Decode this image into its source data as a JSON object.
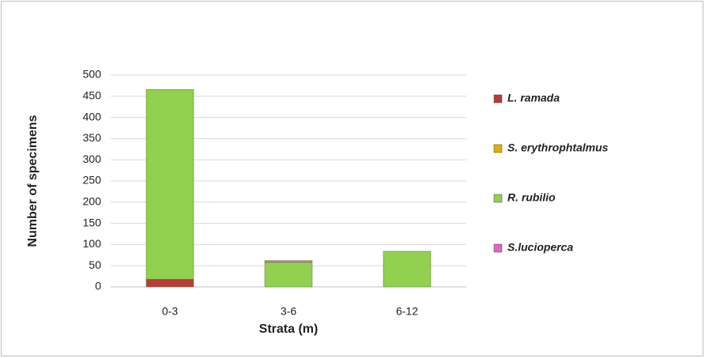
{
  "chart_data": {
    "type": "bar",
    "stacked": true,
    "x_label": "Strata (m)",
    "y_label": "Number of specimens",
    "categories": [
      "0-3",
      "3-6",
      "6-12"
    ],
    "series": [
      {
        "name": "L. ramada",
        "color": "#b83c3a",
        "values": [
          18,
          0,
          0
        ]
      },
      {
        "name": "S. erythrophtalmus",
        "color": "#e0b000",
        "values": [
          0,
          0,
          0
        ]
      },
      {
        "name": "R. rubilio",
        "color": "#92d050",
        "values": [
          448,
          58,
          84
        ]
      },
      {
        "name": "S.lucioperca",
        "color": "#e066c4",
        "values": [
          0,
          4,
          0
        ]
      }
    ],
    "ylim": [
      0,
      500
    ],
    "yticks": [
      0,
      50,
      100,
      150,
      200,
      250,
      300,
      350,
      400,
      450,
      500
    ],
    "grid": true,
    "legend": "right"
  }
}
